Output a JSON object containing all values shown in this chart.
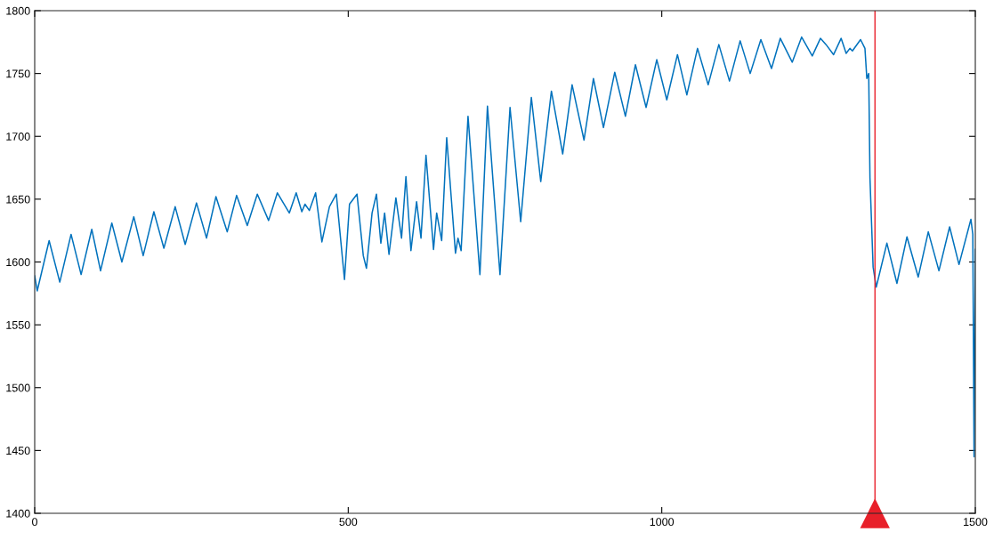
{
  "chart_data": {
    "type": "line",
    "x": [
      0,
      4,
      23,
      40,
      58,
      74,
      91,
      105,
      123,
      139,
      158,
      173,
      190,
      206,
      224,
      240,
      258,
      274,
      289,
      307,
      322,
      339,
      355,
      373,
      387,
      406,
      417,
      426,
      431,
      438,
      448,
      458,
      470,
      481,
      494,
      502,
      514,
      524,
      529,
      538,
      545,
      552,
      558,
      565,
      576,
      585,
      592,
      600,
      609,
      616,
      624,
      636,
      641,
      649,
      657,
      671,
      675,
      680,
      691,
      710,
      722,
      742,
      758,
      775,
      792,
      807,
      824,
      842,
      857,
      876,
      891,
      907,
      925,
      942,
      958,
      975,
      992,
      1008,
      1025,
      1040,
      1057,
      1074,
      1091,
      1108,
      1125,
      1141,
      1158,
      1175,
      1189,
      1208,
      1223,
      1240,
      1253,
      1262,
      1274,
      1286,
      1294,
      1300,
      1304,
      1317,
      1324,
      1327,
      1330,
      1332,
      1337,
      1342,
      1359,
      1375,
      1391,
      1409,
      1425,
      1442,
      1459,
      1474,
      1493,
      1496,
      1498,
      1500
    ],
    "series": [
      {
        "color": "#0072bd",
        "values": [
          1589,
          1577,
          1617,
          1584,
          1622,
          1590,
          1626,
          1593,
          1631,
          1600,
          1636,
          1605,
          1640,
          1611,
          1644,
          1614,
          1647,
          1619,
          1652,
          1624,
          1653,
          1629,
          1654,
          1633,
          1655,
          1639,
          1655,
          1640,
          1646,
          1641,
          1655,
          1616,
          1644,
          1654,
          1586,
          1646,
          1654,
          1605,
          1595,
          1639,
          1654,
          1615,
          1639,
          1606,
          1651,
          1619,
          1668,
          1609,
          1648,
          1619,
          1685,
          1610,
          1639,
          1617,
          1699,
          1607,
          1619,
          1609,
          1716,
          1590,
          1724,
          1590,
          1723,
          1632,
          1731,
          1664,
          1736,
          1686,
          1741,
          1697,
          1746,
          1707,
          1751,
          1716,
          1757,
          1723,
          1761,
          1729,
          1765,
          1733,
          1770,
          1741,
          1773,
          1744,
          1776,
          1750,
          1777,
          1754,
          1778,
          1759,
          1779,
          1764,
          1778,
          1773,
          1765,
          1778,
          1766,
          1770,
          1768,
          1777,
          1770,
          1746,
          1750,
          1667,
          1596,
          1580,
          1615,
          1583,
          1620,
          1588,
          1624,
          1593,
          1628,
          1598,
          1634,
          1622,
          1445,
          1610
        ]
      }
    ],
    "xlim": [
      0,
      1500
    ],
    "ylim": [
      1400,
      1800
    ],
    "xticks": [
      0,
      500,
      1000,
      1500
    ],
    "yticks": [
      1400,
      1450,
      1500,
      1550,
      1600,
      1650,
      1700,
      1750,
      1800
    ],
    "ref_lines": [
      {
        "axis": "x",
        "value": 1340,
        "color": "#e8202a"
      }
    ],
    "grid": false,
    "legend": false,
    "marker": "none",
    "line_style": "solid"
  }
}
